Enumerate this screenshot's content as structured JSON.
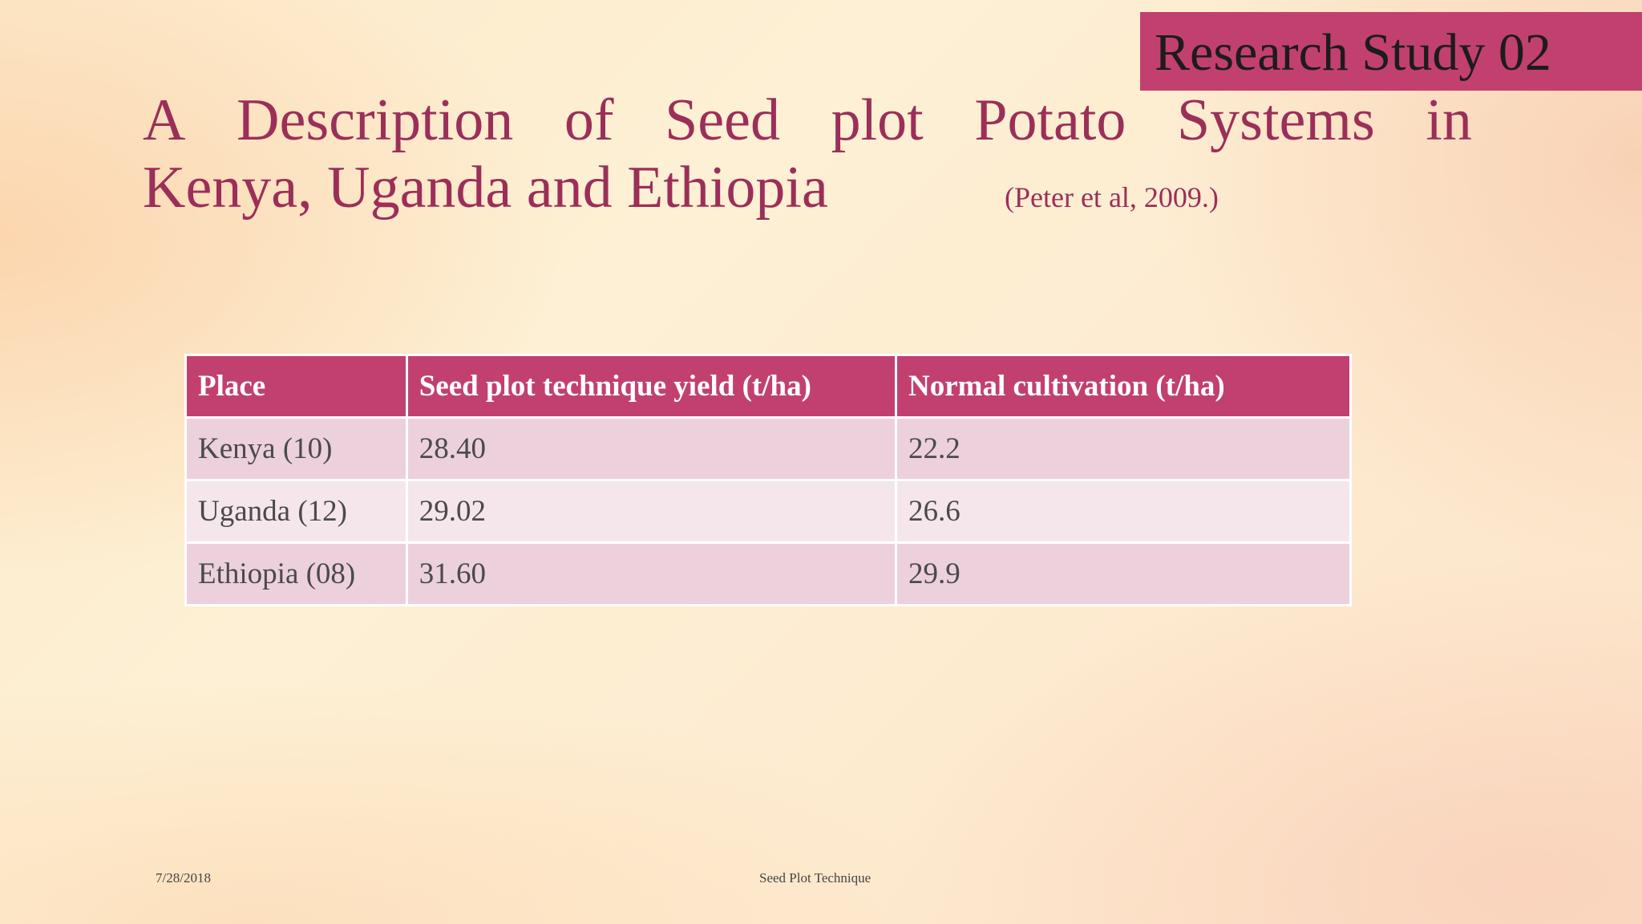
{
  "tag": {
    "text": "Research Study 02"
  },
  "title": {
    "line1_words": [
      "A",
      "Description",
      "of",
      "Seed",
      "plot",
      "Potato",
      "Systems",
      "in"
    ],
    "line2": "Kenya, Uganda and Ethiopia"
  },
  "citation": "(Peter et al, 2009.)",
  "table": {
    "headers": [
      "Place",
      "Seed plot technique  yield (t/ha)",
      "Normal cultivation (t/ha)"
    ],
    "rows": [
      [
        "Kenya (10)",
        "28.40",
        "22.2"
      ],
      [
        "Uganda (12)",
        "29.02",
        "26.6"
      ],
      [
        "Ethiopia (08)",
        "31.60",
        "29.9"
      ]
    ]
  },
  "footer": {
    "date": "7/28/2018",
    "center": "Seed Plot Technique"
  },
  "colors": {
    "accent": "#c2406f",
    "title": "#9b2f59",
    "row_dark": "#ecd0dc",
    "row_light": "#f5e6ec"
  }
}
